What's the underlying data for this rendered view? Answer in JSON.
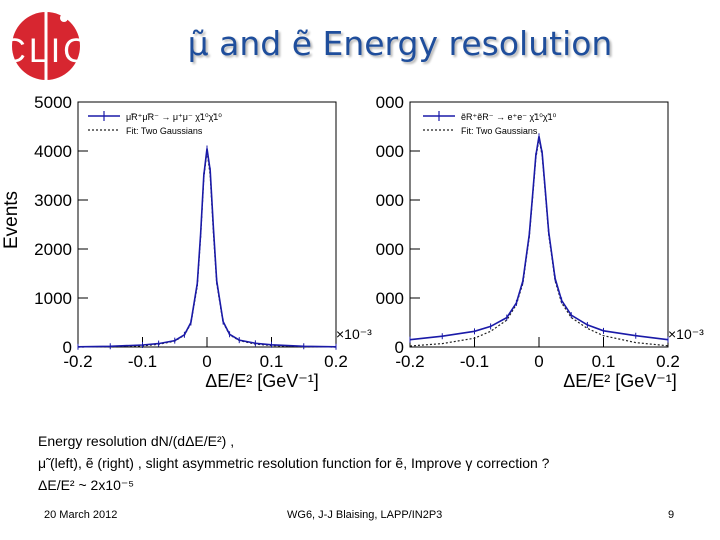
{
  "title": "μ̃ and ẽ Energy resolution",
  "logo": {
    "text": "CLIC",
    "icon": "clic-logo-icon"
  },
  "colors": {
    "title": "#1f4e9c",
    "data_series": "#1a1aa8",
    "fit": "#222222",
    "logo_red": "#d72630"
  },
  "chart_data": [
    {
      "type": "line",
      "ylabel": "Events",
      "xlabel": "ΔE/E² [GeV⁻¹]",
      "x_exponent_label": "×10⁻³",
      "xlim": [
        -0.2,
        0.2
      ],
      "ylim": [
        0,
        5000
      ],
      "xticks": [
        "-0.2",
        "-0.1",
        "0",
        "0.1",
        "0.2"
      ],
      "yticks": [
        "0",
        "1000",
        "2000",
        "3000",
        "4000",
        "5000"
      ],
      "legend_position": "top-left",
      "grid": false,
      "series": [
        {
          "name": "μ̃R⁺μ̃R⁻ → μ⁺μ⁻ χ̃1⁰χ̃1⁰",
          "style": "line-with-crosses",
          "x": [
            -0.2,
            -0.15,
            -0.1,
            -0.075,
            -0.05,
            -0.035,
            -0.025,
            -0.015,
            -0.01,
            -0.005,
            0,
            0.005,
            0.01,
            0.015,
            0.025,
            0.035,
            0.05,
            0.075,
            0.1,
            0.15,
            0.2
          ],
          "y": [
            5,
            15,
            40,
            70,
            130,
            250,
            500,
            1300,
            2300,
            3500,
            4050,
            3600,
            2400,
            1350,
            520,
            260,
            140,
            75,
            45,
            15,
            5
          ]
        },
        {
          "name": "Fit: Two Gaussians",
          "style": "dotted",
          "x": [
            -0.2,
            -0.15,
            -0.1,
            -0.075,
            -0.05,
            -0.035,
            -0.025,
            -0.015,
            -0.01,
            -0.005,
            0,
            0.005,
            0.01,
            0.015,
            0.025,
            0.035,
            0.05,
            0.075,
            0.1,
            0.15,
            0.2
          ],
          "y": [
            0,
            5,
            25,
            55,
            120,
            240,
            480,
            1250,
            2250,
            3450,
            4000,
            3500,
            2300,
            1300,
            500,
            250,
            130,
            60,
            30,
            5,
            0
          ]
        }
      ]
    },
    {
      "type": "line",
      "xlabel": "ΔE/E² [GeV⁻¹]",
      "x_exponent_label": "×10⁻³",
      "xlim": [
        -0.2,
        0.2
      ],
      "ylim": [
        0,
        5000
      ],
      "xticks": [
        "-0.2",
        "-0.1",
        "0",
        "0.1",
        "0.2"
      ],
      "yticks_clipped": [
        "0",
        "000",
        "000",
        "000",
        "000",
        "000"
      ],
      "legend_position": "top-left",
      "grid": false,
      "series": [
        {
          "name": "ẽR⁺ẽR⁻ → e⁺e⁻ χ̃1⁰χ̃1⁰",
          "style": "line-with-crosses",
          "x": [
            -0.2,
            -0.15,
            -0.1,
            -0.075,
            -0.05,
            -0.035,
            -0.025,
            -0.015,
            -0.01,
            -0.005,
            0,
            0.005,
            0.01,
            0.015,
            0.025,
            0.035,
            0.05,
            0.075,
            0.1,
            0.15,
            0.2
          ],
          "y": [
            150,
            220,
            320,
            420,
            600,
            900,
            1350,
            2300,
            3100,
            3900,
            4300,
            3950,
            3150,
            2350,
            1400,
            950,
            650,
            450,
            330,
            230,
            150
          ]
        },
        {
          "name": "Fit: Two Gaussians",
          "style": "dotted",
          "x": [
            -0.2,
            -0.15,
            -0.1,
            -0.075,
            -0.05,
            -0.035,
            -0.025,
            -0.015,
            -0.01,
            -0.005,
            0,
            0.005,
            0.01,
            0.015,
            0.025,
            0.035,
            0.05,
            0.075,
            0.1,
            0.15,
            0.2
          ],
          "y": [
            20,
            70,
            180,
            320,
            550,
            870,
            1300,
            2250,
            3050,
            3850,
            4250,
            3900,
            3100,
            2300,
            1350,
            900,
            600,
            380,
            230,
            90,
            25
          ]
        }
      ]
    }
  ],
  "caption": {
    "line1": "Energy resolution dN/(dΔE/E²) ,",
    "line2": "μ̃ (left), ẽ (right) , slight asymmetric resolution function for ẽ, Improve γ correction ?",
    "line3": "ΔE/E² ~ 2x10⁻⁵"
  },
  "footer": {
    "date": "20 March 2012",
    "center": "WG6, J-J Blaising, LAPP/IN2P3",
    "page": "9"
  }
}
